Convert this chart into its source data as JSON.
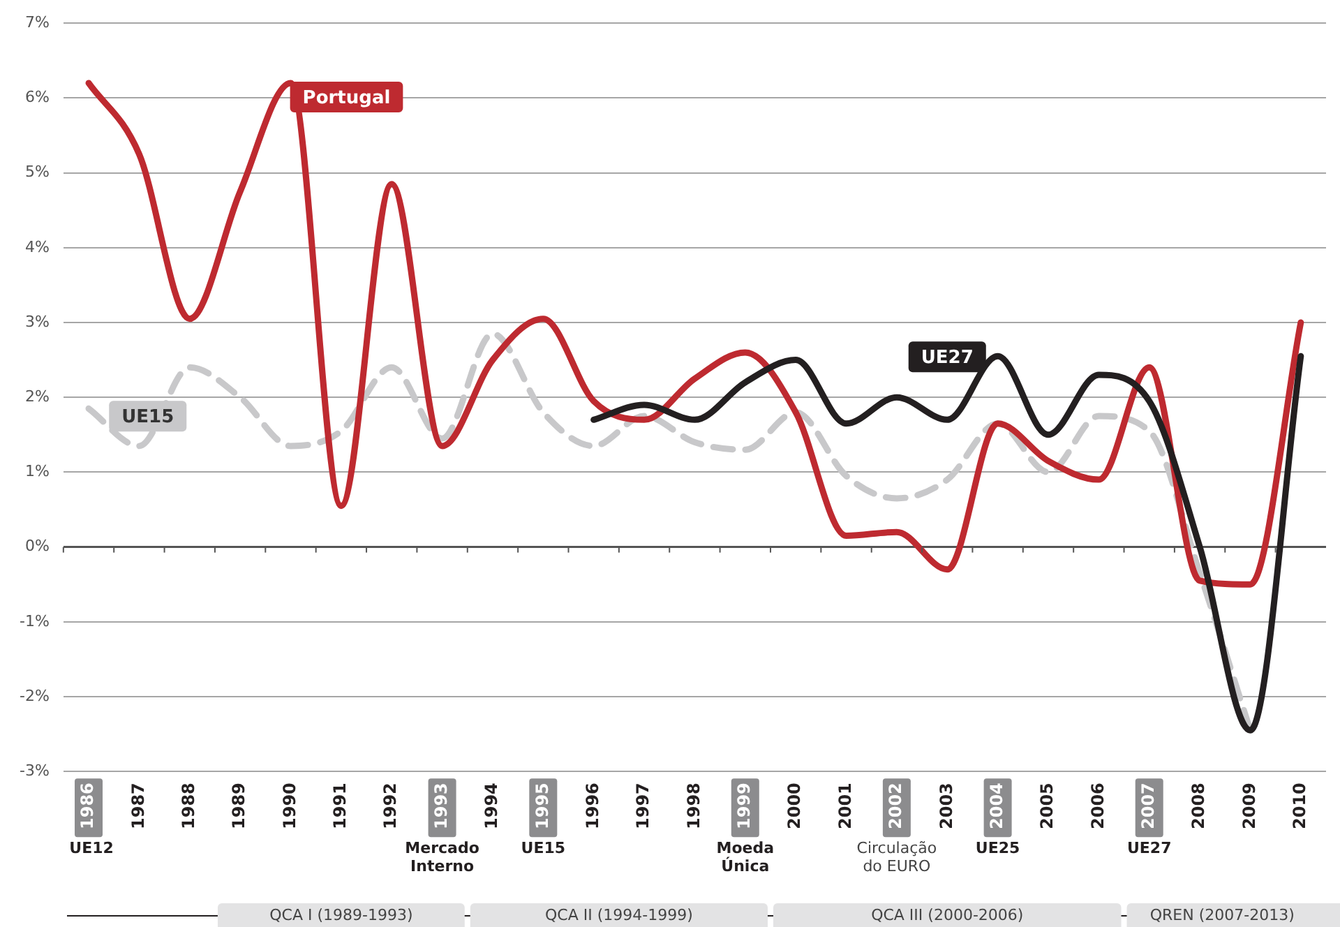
{
  "chart_data": {
    "type": "line",
    "categories": [
      "1986",
      "1987",
      "1988",
      "1989",
      "1990",
      "1991",
      "1992",
      "1993",
      "1994",
      "1995",
      "1996",
      "1997",
      "1998",
      "1999",
      "2000",
      "2001",
      "2002",
      "2003",
      "2004",
      "2005",
      "2006",
      "2007",
      "2008",
      "2009",
      "2010"
    ],
    "series": [
      {
        "name": "Portugal",
        "color": "#be2a30",
        "line_style": "solid",
        "values": [
          6.2,
          5.25,
          3.05,
          4.75,
          6.2,
          0.55,
          4.85,
          1.35,
          2.5,
          3.05,
          1.95,
          1.7,
          2.25,
          2.6,
          1.8,
          0.15,
          0.2,
          -0.3,
          1.65,
          1.15,
          0.9,
          2.4,
          -0.45,
          -0.5,
          3.0
        ]
      },
      {
        "name": "UE15",
        "color": "#c8c8ca",
        "line_style": "dashed",
        "values": [
          1.85,
          1.35,
          2.4,
          2.0,
          1.35,
          1.55,
          2.4,
          1.45,
          2.85,
          1.8,
          1.35,
          1.75,
          1.4,
          1.3,
          1.8,
          0.95,
          0.65,
          0.9,
          1.65,
          1.0,
          1.75,
          1.55,
          -0.35,
          -2.45,
          null
        ]
      },
      {
        "name": "UE27",
        "color": "#231f20",
        "line_style": "solid",
        "values": [
          null,
          null,
          null,
          null,
          null,
          null,
          null,
          null,
          null,
          null,
          1.7,
          1.9,
          1.7,
          2.2,
          2.5,
          1.65,
          2.0,
          1.7,
          2.55,
          1.5,
          2.3,
          1.95,
          0.0,
          -2.45,
          2.55
        ]
      }
    ],
    "ylim": [
      -3,
      7
    ],
    "yticks": [
      {
        "value": -3,
        "label": "-3%"
      },
      {
        "value": -2,
        "label": "-2%"
      },
      {
        "value": -1,
        "label": "-1%"
      },
      {
        "value": 0,
        "label": "0%"
      },
      {
        "value": 1,
        "label": "1%"
      },
      {
        "value": 2,
        "label": "2%"
      },
      {
        "value": 3,
        "label": "3%"
      },
      {
        "value": 4,
        "label": "4%"
      },
      {
        "value": 5,
        "label": "5%"
      },
      {
        "value": 6,
        "label": "6%"
      },
      {
        "value": 7,
        "label": "7%"
      }
    ],
    "grid": "y",
    "legend": false,
    "marker": "none",
    "annotations": [
      "UE12",
      "Mercado\nInterno",
      "UE15",
      "Moeda\nÚnica",
      "Circulação\ndo EURO",
      "UE25",
      "UE27",
      "QCA I (1989-1993)",
      "QCA II (1994-1999)",
      "QCA III (2000-2006)",
      "QREN (2007-2013)"
    ]
  }
}
